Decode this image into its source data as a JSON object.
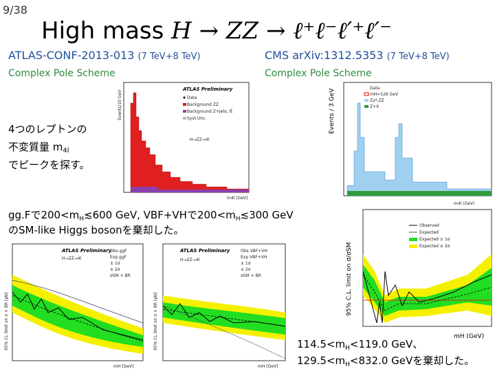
{
  "slide_number": "9/38",
  "title": {
    "text": "High mass",
    "formula": "H → ZZ → ℓ⁺ℓ⁻ℓ′⁺ℓ′⁻"
  },
  "left": {
    "reference": "ATLAS-CONF-2013-013",
    "energy": "(7 TeV+8 TeV)",
    "scheme": "Complex Pole Scheme"
  },
  "right": {
    "reference": "CMS arXiv:1312.5353",
    "energy": "(7 TeV+8 TeV)",
    "scheme": "Complex Pole Scheme"
  },
  "note": {
    "line1": "4つのレプトンの",
    "line2": [
      "不変質量 m",
      "4l"
    ],
    "line3": "でピークを探す。"
  },
  "result_atlas": {
    "line1": [
      "gg.Fで200<m",
      "H",
      "≲600 GeV, VBF+VHで200<m",
      "H",
      "≲300 GeV"
    ],
    "line2": "のSM-like Higgs bosonを棄却した。"
  },
  "result_cms": {
    "line1": [
      "114.5<m",
      "H",
      "<119.0 GeV、"
    ],
    "line2": [
      "129.5<m",
      "H",
      "<832.0 GeVを棄却した。"
    ]
  },
  "plots": {
    "atlas_mass": {
      "header": "ATLAS Preliminary",
      "legend": [
        "Data",
        "Background ZZ",
        "Background Z+jets, tt̄",
        "Syst.Unc."
      ],
      "process": "H→ZZ→4l",
      "xlabel": "m4l [GeV]",
      "ylabel": "Events/10 GeV"
    },
    "cms_mass": {
      "legend": [
        "Data",
        "mH=126 GeV",
        "Zγ*,ZZ",
        "Z+X"
      ],
      "xlabel": "m4l (GeV)",
      "ylabel": "Events / 3 GeV"
    },
    "atlas_ggf": {
      "header": "ATLAS Preliminary",
      "process": "H→ZZ→4l",
      "legend": [
        "Obs ggF",
        "Exp ggF",
        "± 1σ",
        "± 2σ",
        "σSM × BR"
      ],
      "xlabel": "mH [GeV]",
      "ylabel": "95% CL limit on σ × BR [pb]"
    },
    "atlas_vbf": {
      "header": "ATLAS Preliminary",
      "process": "H→ZZ→4l",
      "legend": [
        "Obs VBF+VH",
        "Exp VBF+VH",
        "± 1σ",
        "± 2σ",
        "σSM × BR"
      ],
      "xlabel": "mH [GeV]",
      "ylabel": "95% CL limit on σ × BR [pb]"
    },
    "cms_limit": {
      "legend": [
        "Observed",
        "Expected",
        "Expected ± 1σ",
        "Expected ± 2σ"
      ],
      "xlabel": "mH (GeV)",
      "ylabel": "95% C.L. limit on σ/σSM"
    }
  }
}
